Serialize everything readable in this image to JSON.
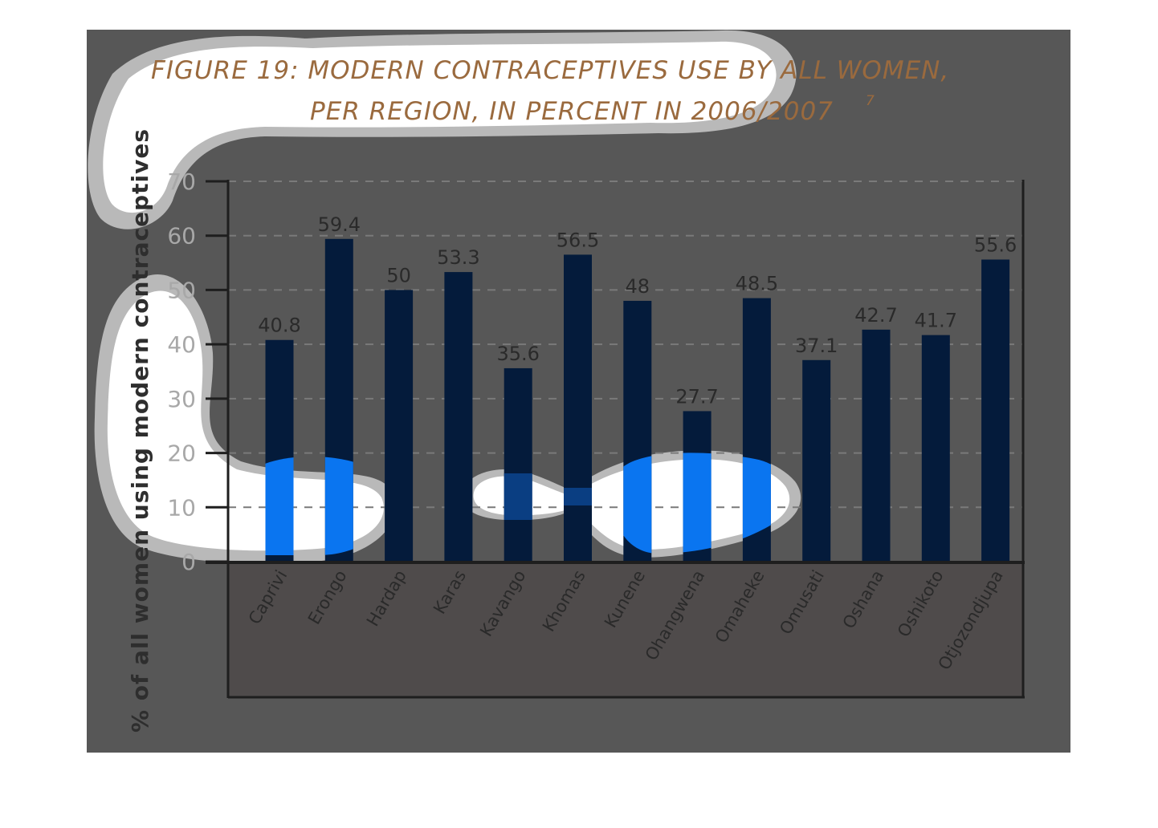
{
  "chart_data": {
    "type": "bar",
    "title_line1": "FIGURE 19: MODERN CONTRACEPTIVES USE BY ALL WOMEN,",
    "title_line2": "PER REGION, IN PERCENT IN 2006/2007",
    "title_superscript": "7",
    "ylabel": "% of all women using modern contraceptives",
    "xlabel": "",
    "ylim": [
      0,
      70
    ],
    "yticks": [
      0,
      10,
      20,
      30,
      40,
      50,
      60,
      70
    ],
    "grid": "dashed horizontal",
    "categories": [
      "Caprivi",
      "Erongo",
      "Hardap",
      "Karas",
      "Kavango",
      "Khomas",
      "Kunene",
      "Ohangwena",
      "Omaheke",
      "Omusati",
      "Oshana",
      "Oshikoto",
      "Otjozondjupa"
    ],
    "values": [
      40.8,
      59.4,
      50,
      53.3,
      35.6,
      56.5,
      48,
      27.7,
      48.5,
      37.1,
      42.7,
      41.7,
      55.6
    ],
    "value_labels": [
      "40.8",
      "59.4",
      "50",
      "53.3",
      "35.6",
      "56.5",
      "48",
      "27.7",
      "48.5",
      "37.1",
      "42.7",
      "41.7",
      "55.6"
    ],
    "colors": {
      "bar": "#041b3b",
      "background": "#575757",
      "label_area": "#4f4b4b",
      "grid": "#7a7a7a",
      "axis": "#1e1e1e",
      "title": "#9a6a3e",
      "highlight_blue": "#0a75f0",
      "highlight_white": "#ffffff",
      "blob_white": "#ffffff",
      "blob_gray": "#b9b9b9"
    }
  }
}
